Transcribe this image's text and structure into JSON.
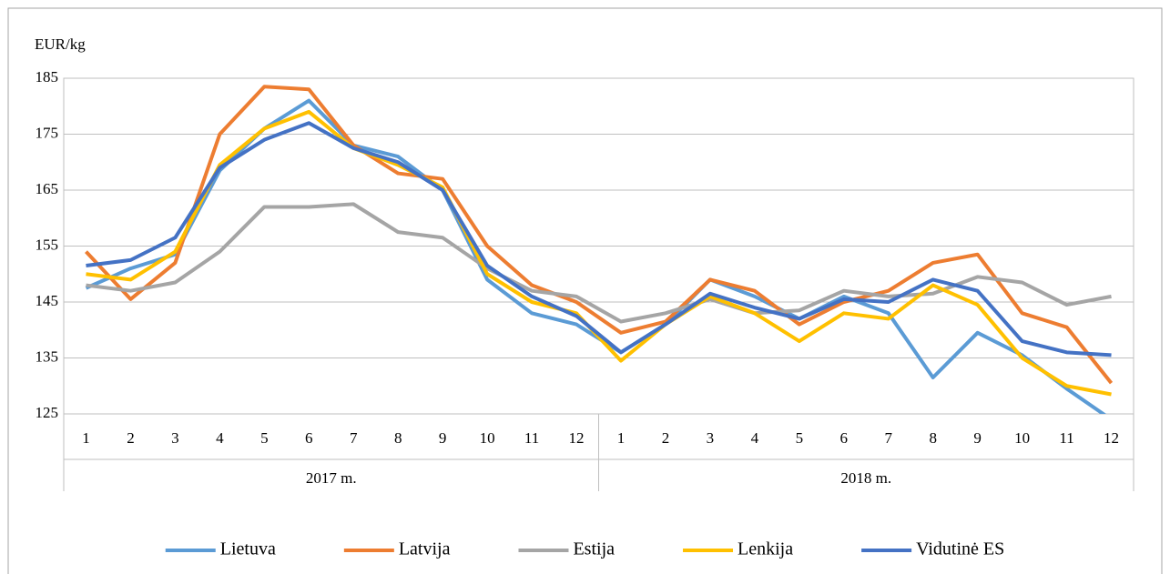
{
  "chart_data": {
    "type": "line",
    "ylabel": "EUR/kg",
    "categories": [
      "1",
      "2",
      "3",
      "4",
      "5",
      "6",
      "7",
      "8",
      "9",
      "10",
      "11",
      "12",
      "1",
      "2",
      "3",
      "4",
      "5",
      "6",
      "7",
      "8",
      "9",
      "10",
      "11",
      "12"
    ],
    "groups": [
      "2017 m.",
      "2018 m."
    ],
    "ylim": [
      125,
      185
    ],
    "yticks": [
      125,
      135,
      145,
      155,
      165,
      175,
      185
    ],
    "grid": true,
    "legend": "bottom",
    "series": [
      {
        "name": "Lietuva",
        "color": "#5B9BD5",
        "values": [
          147.5,
          151,
          153.5,
          168.5,
          176,
          181,
          173,
          171,
          165,
          149,
          143,
          141,
          136,
          141,
          149,
          146,
          142,
          146,
          143,
          131.5,
          139.5,
          135.5,
          129.5,
          124
        ]
      },
      {
        "name": "Latvija",
        "color": "#ED7D31",
        "values": [
          154,
          145.5,
          152,
          175,
          183.5,
          183,
          173,
          168,
          167,
          155,
          148,
          145,
          139.5,
          141.5,
          149,
          147,
          141,
          145,
          147,
          152,
          153.5,
          143,
          140.5,
          130.5
        ]
      },
      {
        "name": "Estija",
        "color": "#A5A5A5",
        "values": [
          148,
          147,
          148.5,
          154,
          162,
          162,
          162.5,
          157.5,
          156.5,
          151,
          147,
          146,
          141.5,
          143,
          145.5,
          143,
          143.5,
          147,
          146,
          146.5,
          149.5,
          148.5,
          144.5,
          146
        ]
      },
      {
        "name": "Lenkija",
        "color": "#FFC000",
        "values": [
          150,
          149,
          154,
          169.5,
          176,
          179,
          172.5,
          169.5,
          165.5,
          150,
          145,
          143,
          134.5,
          141,
          146,
          143,
          138,
          143,
          142,
          148,
          144.5,
          135,
          130,
          128.5
        ]
      },
      {
        "name": "Vidutinė ES",
        "color": "#4472C4",
        "values": [
          151.5,
          152.5,
          156.5,
          169,
          174,
          177,
          172.5,
          170,
          165,
          151.5,
          146,
          142.5,
          136,
          141,
          146.5,
          144,
          142,
          145.5,
          145,
          149,
          147,
          138,
          136,
          135.5
        ]
      }
    ]
  }
}
